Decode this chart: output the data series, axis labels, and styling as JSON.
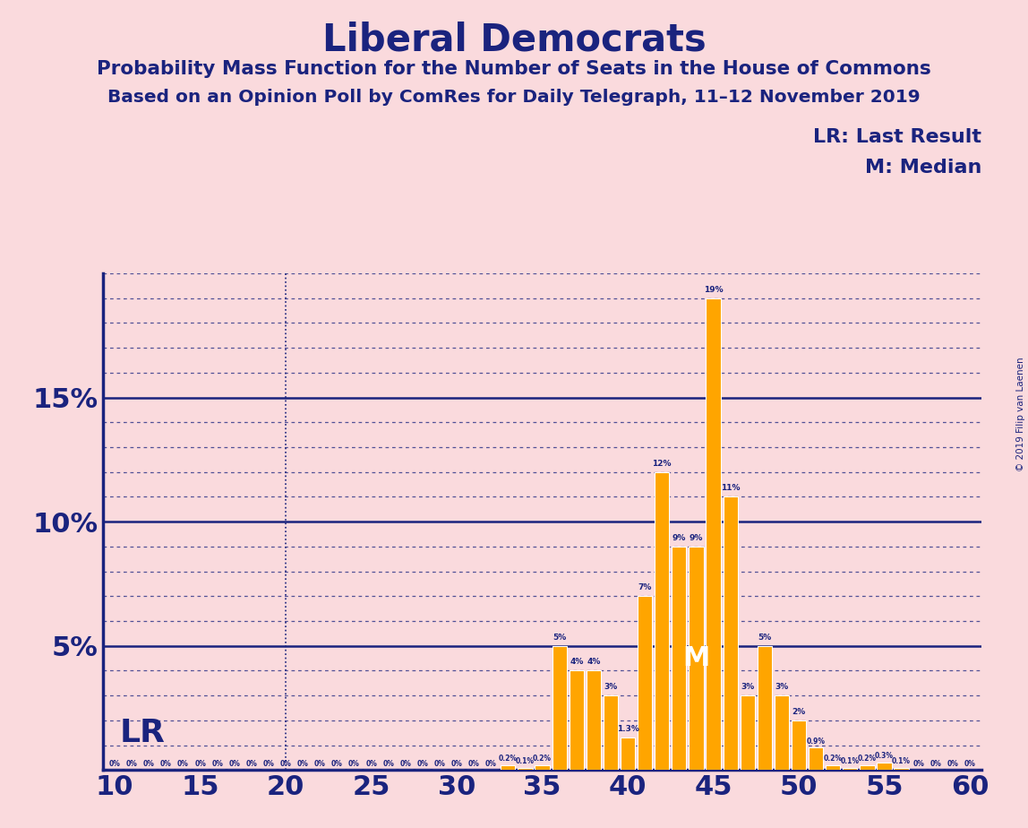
{
  "title": "Liberal Democrats",
  "subtitle1": "Probability Mass Function for the Number of Seats in the House of Commons",
  "subtitle2": "Based on an Opinion Poll by ComRes for Daily Telegraph, 11–12 November 2019",
  "copyright": "© 2019 Filip van Laenen",
  "x_min": 10,
  "x_max": 60,
  "y_max": 20,
  "background_color": "#FADADD",
  "bar_color": "#FFA500",
  "bar_edge_color": "#FFFFFF",
  "axis_color": "#1a237e",
  "grid_color": "#1a237e",
  "text_color": "#1a237e",
  "LR_value": 20,
  "median_value": 44,
  "legend_LR": "LR: Last Result",
  "legend_M": "M: Median",
  "pmf": {
    "10": 0.0,
    "11": 0.0,
    "12": 0.0,
    "13": 0.0,
    "14": 0.0,
    "15": 0.0,
    "16": 0.0,
    "17": 0.0,
    "18": 0.0,
    "19": 0.0,
    "20": 0.0,
    "21": 0.0,
    "22": 0.0,
    "23": 0.0,
    "24": 0.0,
    "25": 0.0,
    "26": 0.0,
    "27": 0.0,
    "28": 0.0,
    "29": 0.0,
    "30": 0.0,
    "31": 0.0,
    "32": 0.0,
    "33": 0.2,
    "34": 0.1,
    "35": 0.2,
    "36": 5.0,
    "37": 4.0,
    "38": 4.0,
    "39": 3.0,
    "40": 1.3,
    "41": 7.0,
    "42": 12.0,
    "43": 9.0,
    "44": 9.0,
    "45": 19.0,
    "46": 11.0,
    "47": 3.0,
    "48": 5.0,
    "49": 3.0,
    "50": 2.0,
    "51": 0.9,
    "52": 0.2,
    "53": 0.1,
    "54": 0.2,
    "55": 0.3,
    "56": 0.1,
    "57": 0.0,
    "58": 0.0,
    "59": 0.0,
    "60": 0.0
  }
}
